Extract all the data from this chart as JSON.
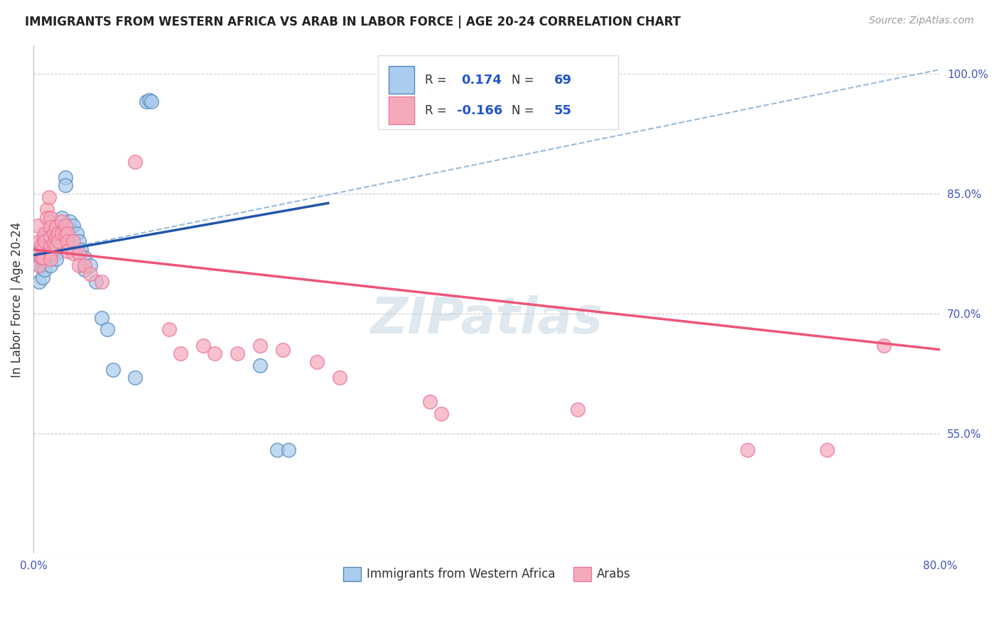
{
  "title": "IMMIGRANTS FROM WESTERN AFRICA VS ARAB IN LABOR FORCE | AGE 20-24 CORRELATION CHART",
  "source": "Source: ZipAtlas.com",
  "ylabel": "In Labor Force | Age 20-24",
  "x_min": 0.0,
  "x_max": 0.8,
  "y_min": 0.4,
  "y_max": 1.035,
  "right_yticks": [
    1.0,
    0.85,
    0.7,
    0.55
  ],
  "right_yticklabels": [
    "100.0%",
    "85.0%",
    "70.0%",
    "55.0%"
  ],
  "bottom_xticks": [
    0.0,
    0.1,
    0.2,
    0.3,
    0.4,
    0.5,
    0.6,
    0.7,
    0.8
  ],
  "bottom_xticklabels": [
    "0.0%",
    "",
    "",
    "",
    "",
    "",
    "",
    "",
    "80.0%"
  ],
  "legend_color1": "#aaccee",
  "legend_color2": "#f5aabb",
  "blue_edge_color": "#5588bb",
  "pink_edge_color": "#ee7799",
  "blue_line_color": "#2255aa",
  "pink_line_color": "#ee5577",
  "dashed_line_color": "#99bbdd",
  "watermark": "ZIPatlas",
  "scatter_blue": [
    [
      0.004,
      0.775
    ],
    [
      0.005,
      0.76
    ],
    [
      0.005,
      0.74
    ],
    [
      0.007,
      0.77
    ],
    [
      0.008,
      0.775
    ],
    [
      0.008,
      0.76
    ],
    [
      0.008,
      0.745
    ],
    [
      0.01,
      0.785
    ],
    [
      0.01,
      0.775
    ],
    [
      0.01,
      0.765
    ],
    [
      0.01,
      0.755
    ],
    [
      0.012,
      0.795
    ],
    [
      0.012,
      0.78
    ],
    [
      0.013,
      0.79
    ],
    [
      0.013,
      0.78
    ],
    [
      0.013,
      0.77
    ],
    [
      0.015,
      0.8
    ],
    [
      0.015,
      0.79
    ],
    [
      0.015,
      0.782
    ],
    [
      0.015,
      0.774
    ],
    [
      0.015,
      0.768
    ],
    [
      0.015,
      0.76
    ],
    [
      0.018,
      0.8
    ],
    [
      0.018,
      0.788
    ],
    [
      0.018,
      0.778
    ],
    [
      0.02,
      0.81
    ],
    [
      0.02,
      0.8
    ],
    [
      0.02,
      0.79
    ],
    [
      0.02,
      0.782
    ],
    [
      0.02,
      0.775
    ],
    [
      0.02,
      0.768
    ],
    [
      0.022,
      0.81
    ],
    [
      0.022,
      0.8
    ],
    [
      0.022,
      0.79
    ],
    [
      0.025,
      0.82
    ],
    [
      0.025,
      0.808
    ],
    [
      0.028,
      0.87
    ],
    [
      0.028,
      0.86
    ],
    [
      0.03,
      0.8
    ],
    [
      0.03,
      0.79
    ],
    [
      0.032,
      0.815
    ],
    [
      0.032,
      0.805
    ],
    [
      0.035,
      0.81
    ],
    [
      0.038,
      0.8
    ],
    [
      0.04,
      0.79
    ],
    [
      0.04,
      0.775
    ],
    [
      0.042,
      0.78
    ],
    [
      0.045,
      0.77
    ],
    [
      0.045,
      0.755
    ],
    [
      0.05,
      0.76
    ],
    [
      0.055,
      0.74
    ],
    [
      0.06,
      0.695
    ],
    [
      0.065,
      0.68
    ],
    [
      0.07,
      0.63
    ],
    [
      0.09,
      0.62
    ],
    [
      0.1,
      0.965
    ],
    [
      0.102,
      0.967
    ],
    [
      0.104,
      0.965
    ],
    [
      0.2,
      0.635
    ],
    [
      0.215,
      0.53
    ],
    [
      0.225,
      0.53
    ]
  ],
  "scatter_pink": [
    [
      0.004,
      0.81
    ],
    [
      0.005,
      0.79
    ],
    [
      0.005,
      0.775
    ],
    [
      0.005,
      0.76
    ],
    [
      0.007,
      0.785
    ],
    [
      0.007,
      0.77
    ],
    [
      0.009,
      0.795
    ],
    [
      0.009,
      0.782
    ],
    [
      0.009,
      0.77
    ],
    [
      0.01,
      0.8
    ],
    [
      0.01,
      0.79
    ],
    [
      0.012,
      0.83
    ],
    [
      0.012,
      0.82
    ],
    [
      0.014,
      0.845
    ],
    [
      0.015,
      0.82
    ],
    [
      0.015,
      0.808
    ],
    [
      0.015,
      0.796
    ],
    [
      0.015,
      0.784
    ],
    [
      0.015,
      0.775
    ],
    [
      0.015,
      0.768
    ],
    [
      0.018,
      0.8
    ],
    [
      0.018,
      0.788
    ],
    [
      0.02,
      0.808
    ],
    [
      0.02,
      0.796
    ],
    [
      0.02,
      0.785
    ],
    [
      0.022,
      0.8
    ],
    [
      0.022,
      0.79
    ],
    [
      0.025,
      0.815
    ],
    [
      0.025,
      0.8
    ],
    [
      0.028,
      0.81
    ],
    [
      0.028,
      0.798
    ],
    [
      0.03,
      0.8
    ],
    [
      0.03,
      0.79
    ],
    [
      0.03,
      0.778
    ],
    [
      0.035,
      0.79
    ],
    [
      0.035,
      0.775
    ],
    [
      0.04,
      0.775
    ],
    [
      0.04,
      0.76
    ],
    [
      0.045,
      0.76
    ],
    [
      0.05,
      0.75
    ],
    [
      0.06,
      0.74
    ],
    [
      0.09,
      0.89
    ],
    [
      0.12,
      0.68
    ],
    [
      0.13,
      0.65
    ],
    [
      0.15,
      0.66
    ],
    [
      0.16,
      0.65
    ],
    [
      0.18,
      0.65
    ],
    [
      0.2,
      0.66
    ],
    [
      0.22,
      0.655
    ],
    [
      0.25,
      0.64
    ],
    [
      0.27,
      0.62
    ],
    [
      0.35,
      0.59
    ],
    [
      0.36,
      0.575
    ],
    [
      0.48,
      0.58
    ],
    [
      0.63,
      0.53
    ],
    [
      0.7,
      0.53
    ],
    [
      0.75,
      0.66
    ]
  ],
  "blue_line_x": [
    0.0,
    0.26
  ],
  "blue_line_y": [
    0.773,
    0.838
  ],
  "dashed_line_x": [
    0.0,
    0.8
  ],
  "dashed_line_y": [
    0.773,
    1.005
  ],
  "pink_line_x": [
    0.0,
    0.8
  ],
  "pink_line_y": [
    0.78,
    0.655
  ]
}
